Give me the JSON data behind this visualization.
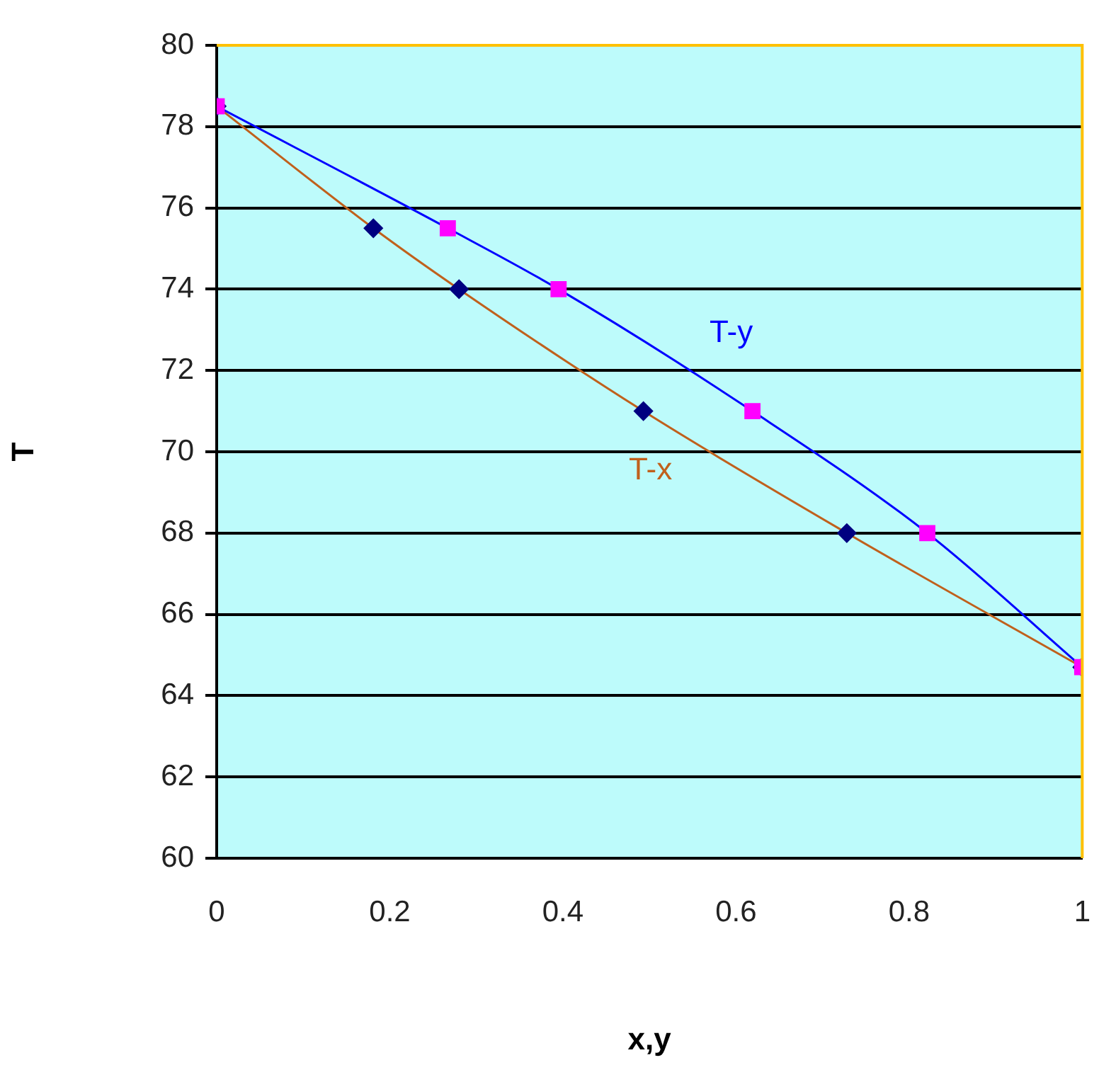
{
  "chart_data": {
    "type": "line",
    "xlabel": "x,y",
    "ylabel": "T",
    "xlim": [
      0,
      1
    ],
    "xticks": [
      0,
      0.2,
      0.4,
      0.6,
      0.8,
      1
    ],
    "ylim": [
      60,
      80
    ],
    "yticks": [
      60,
      62,
      64,
      66,
      68,
      70,
      72,
      74,
      76,
      78,
      80
    ],
    "grid": "y",
    "legend": false,
    "series": [
      {
        "name": "T-y",
        "color": "#0000ff",
        "colors": [
          "#ff00ff",
          "#ff00ff",
          "#ff00ff",
          "#ff00ff",
          "#ff00ff",
          "#ff00ff"
        ],
        "marker": "square",
        "x": [
          0,
          0.267,
          0.395,
          0.619,
          0.821,
          1
        ],
        "values": [
          78.5,
          75.5,
          74,
          71,
          68,
          64.7
        ]
      },
      {
        "name": "T-x",
        "color": "#c0601c",
        "colors": [
          "#000080",
          "#000080",
          "#000080",
          "#000080",
          "#000080",
          "#000080"
        ],
        "marker": "diamond",
        "x": [
          0,
          0.181,
          0.28,
          0.493,
          0.728,
          1
        ],
        "values": [
          78.5,
          75.5,
          74,
          71,
          68,
          64.7
        ]
      }
    ]
  }
}
